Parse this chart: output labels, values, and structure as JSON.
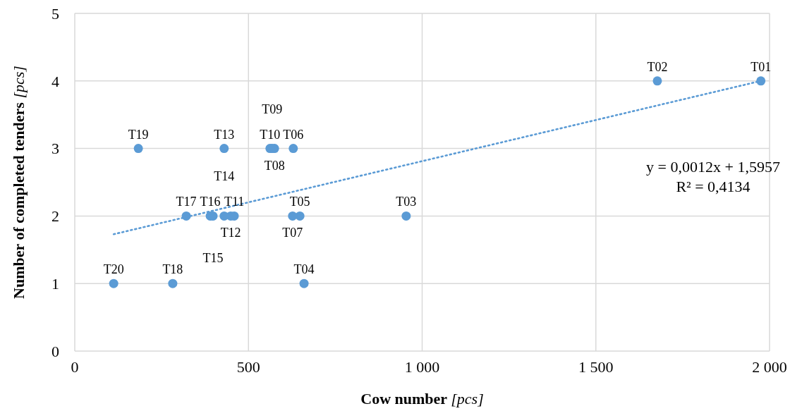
{
  "chart_data": {
    "type": "scatter",
    "xlabel": "Cow number [pcs]",
    "ylabel": "Number of completed tenders [pcs]",
    "xlim": [
      0,
      2000
    ],
    "ylim": [
      0,
      5
    ],
    "xticks": [
      0,
      500,
      {
        "value": 1000,
        "label": "1 000"
      },
      {
        "value": 1500,
        "label": "1 500"
      },
      {
        "value": 2000,
        "label": "2 000"
      }
    ],
    "yticks": [
      0,
      1,
      2,
      3,
      4,
      5
    ],
    "grid": true,
    "series": [
      {
        "color": "#5b9bd5",
        "marker": "circle",
        "x": [
          1975,
          1677,
          954,
          660,
          648,
          629,
          627,
          575,
          568,
          562,
          459,
          449,
          430,
          430,
          398,
          390,
          321,
          282,
          183,
          112
        ],
        "values": [
          4,
          4,
          2,
          1,
          2,
          3,
          2,
          3,
          3,
          3,
          2,
          2,
          3,
          2,
          2,
          2,
          2,
          1,
          3,
          1
        ],
        "value_labels": [
          "T01",
          "T02",
          "T03",
          "T04",
          "T05",
          "T06",
          "T07",
          "T08",
          "T09",
          "T10",
          "T11",
          "T12",
          "T13",
          "T14",
          "T15",
          "T16",
          "T17",
          "T18",
          "T19",
          "T20"
        ]
      },
      {
        "type": "line",
        "color": "#5b9bd5",
        "line_style": "dotted",
        "x": [
          112,
          1975
        ],
        "values": [
          1.73,
          4.0
        ]
      }
    ],
    "annotations": [
      "y = 0,0012x + 1,5957",
      "R² = 0,4134"
    ]
  }
}
